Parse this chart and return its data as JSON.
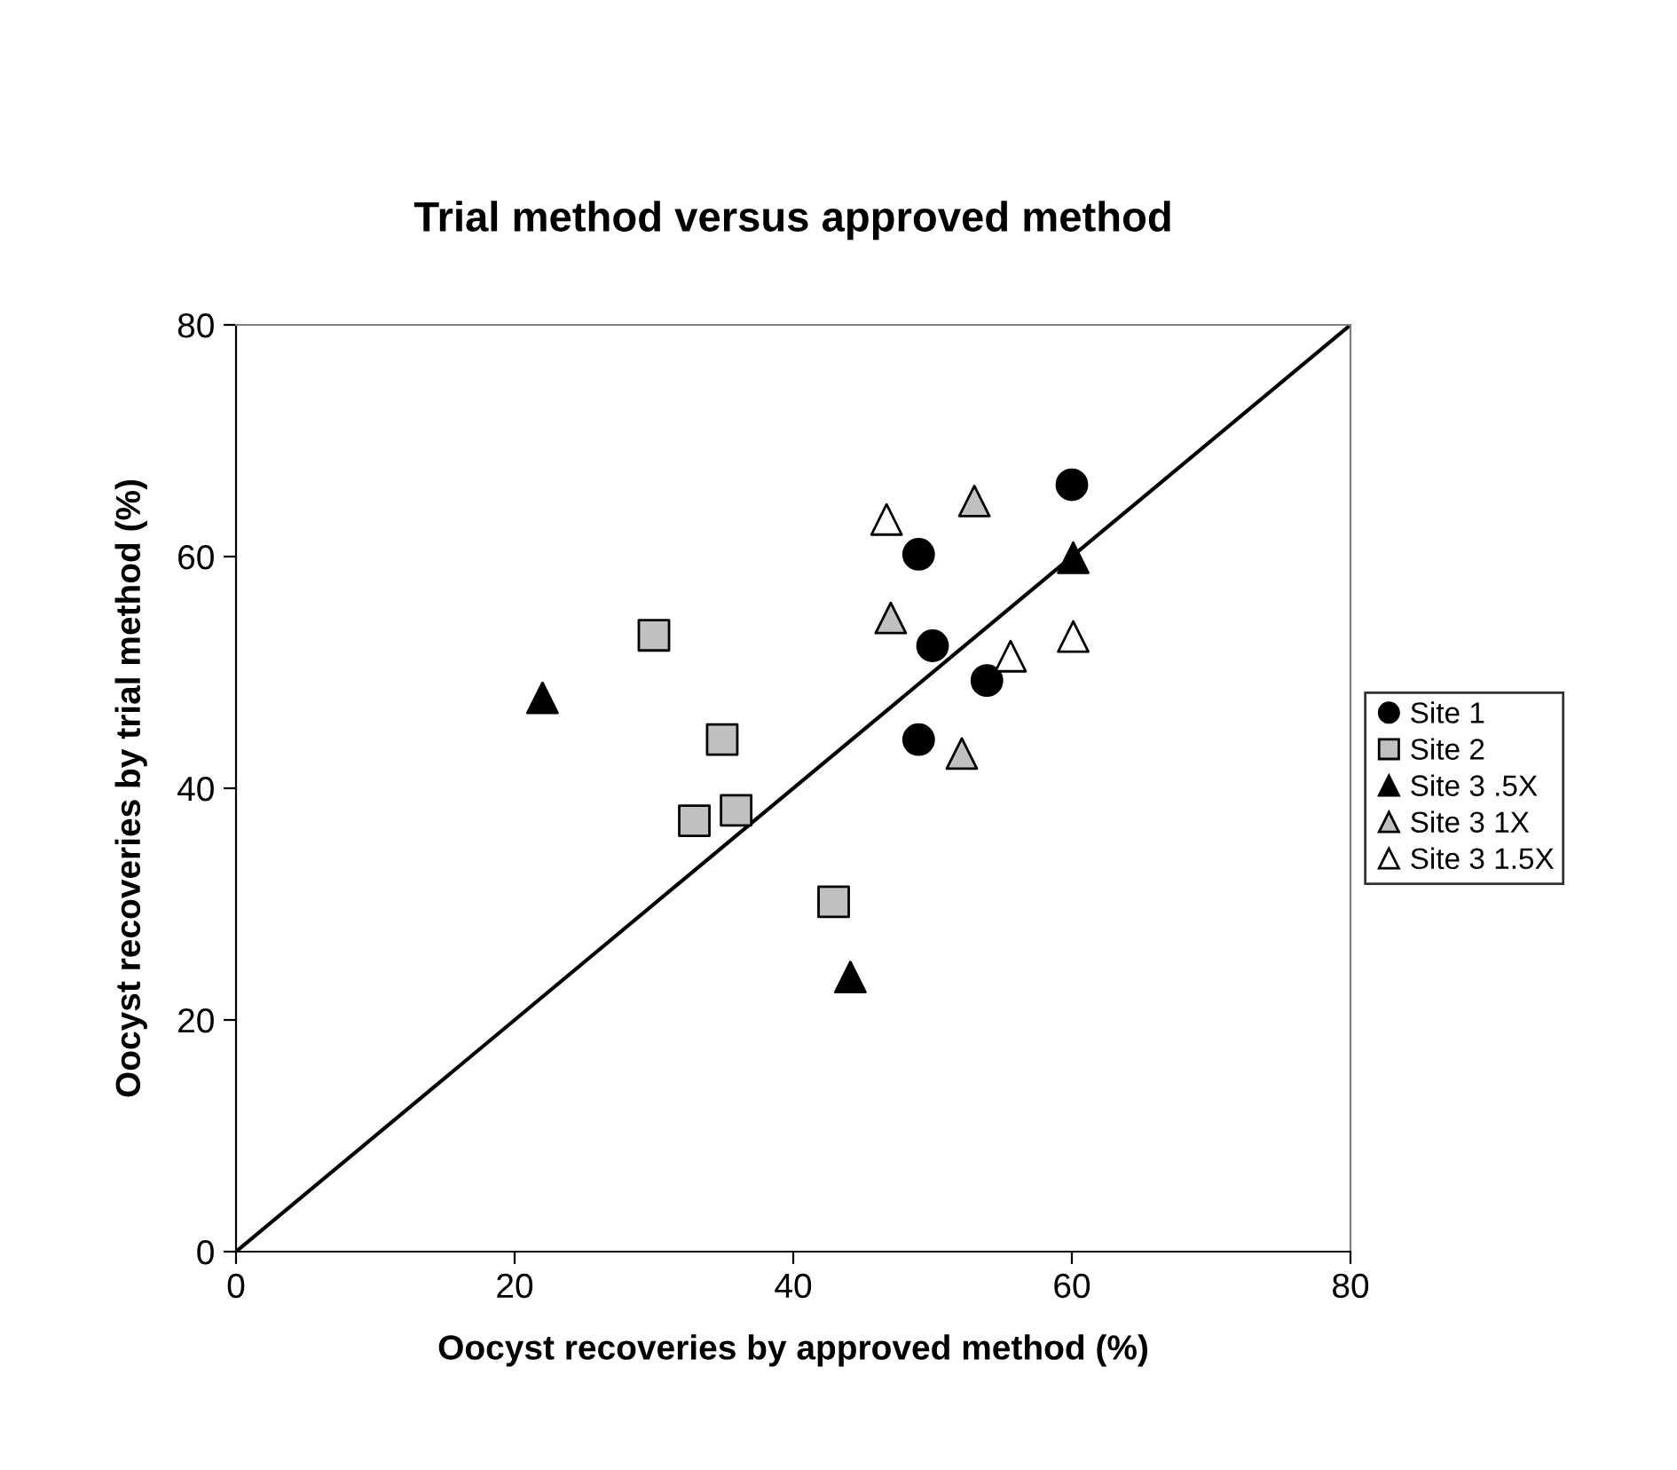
{
  "chart_data": {
    "type": "scatter",
    "title": "Trial method versus approved method",
    "xlabel": "Oocyst recoveries by approved method (%)",
    "ylabel": "Oocyst recoveries by trial method (%)",
    "xlim": [
      0,
      80
    ],
    "ylim": [
      0,
      80
    ],
    "xticks": [
      0,
      20,
      40,
      60,
      80
    ],
    "yticks": [
      0,
      20,
      40,
      60,
      80
    ],
    "grid": false,
    "legend": "right",
    "series": [
      {
        "name": "Site 1",
        "color": "#000000",
        "marker": "circle",
        "x": [
          60.0,
          49.0,
          50.0,
          53.9,
          49.0
        ],
        "values": [
          66.2,
          60.2,
          52.3,
          49.3,
          44.2
        ]
      },
      {
        "name": "Site 2",
        "color": "#c0c0c0",
        "marker": "square",
        "x": [
          30.0,
          34.9,
          32.9,
          35.9,
          42.9
        ],
        "values": [
          53.2,
          44.2,
          37.2,
          38.1,
          30.2
        ]
      },
      {
        "name": "Site 3 .5X",
        "color": "#000000",
        "marker": "triangle",
        "x": [
          22.0,
          44.1,
          60.1
        ],
        "values": [
          47.8,
          23.7,
          59.9
        ]
      },
      {
        "name": "Site 3 1X",
        "color": "#c0c0c0",
        "marker": "triangle",
        "x": [
          53.0,
          47.0,
          52.1
        ],
        "values": [
          64.8,
          54.7,
          43.0
        ]
      },
      {
        "name": "Site 3 1.5X",
        "color": "#ffffff",
        "marker": "triangle",
        "x": [
          46.7,
          55.6,
          60.1
        ],
        "values": [
          63.2,
          51.4,
          53.1
        ]
      },
      {
        "type": "line",
        "color": "#000000",
        "marker": "none",
        "line_style": "solid",
        "x": [
          0,
          80
        ],
        "values": [
          0,
          80
        ]
      }
    ]
  }
}
